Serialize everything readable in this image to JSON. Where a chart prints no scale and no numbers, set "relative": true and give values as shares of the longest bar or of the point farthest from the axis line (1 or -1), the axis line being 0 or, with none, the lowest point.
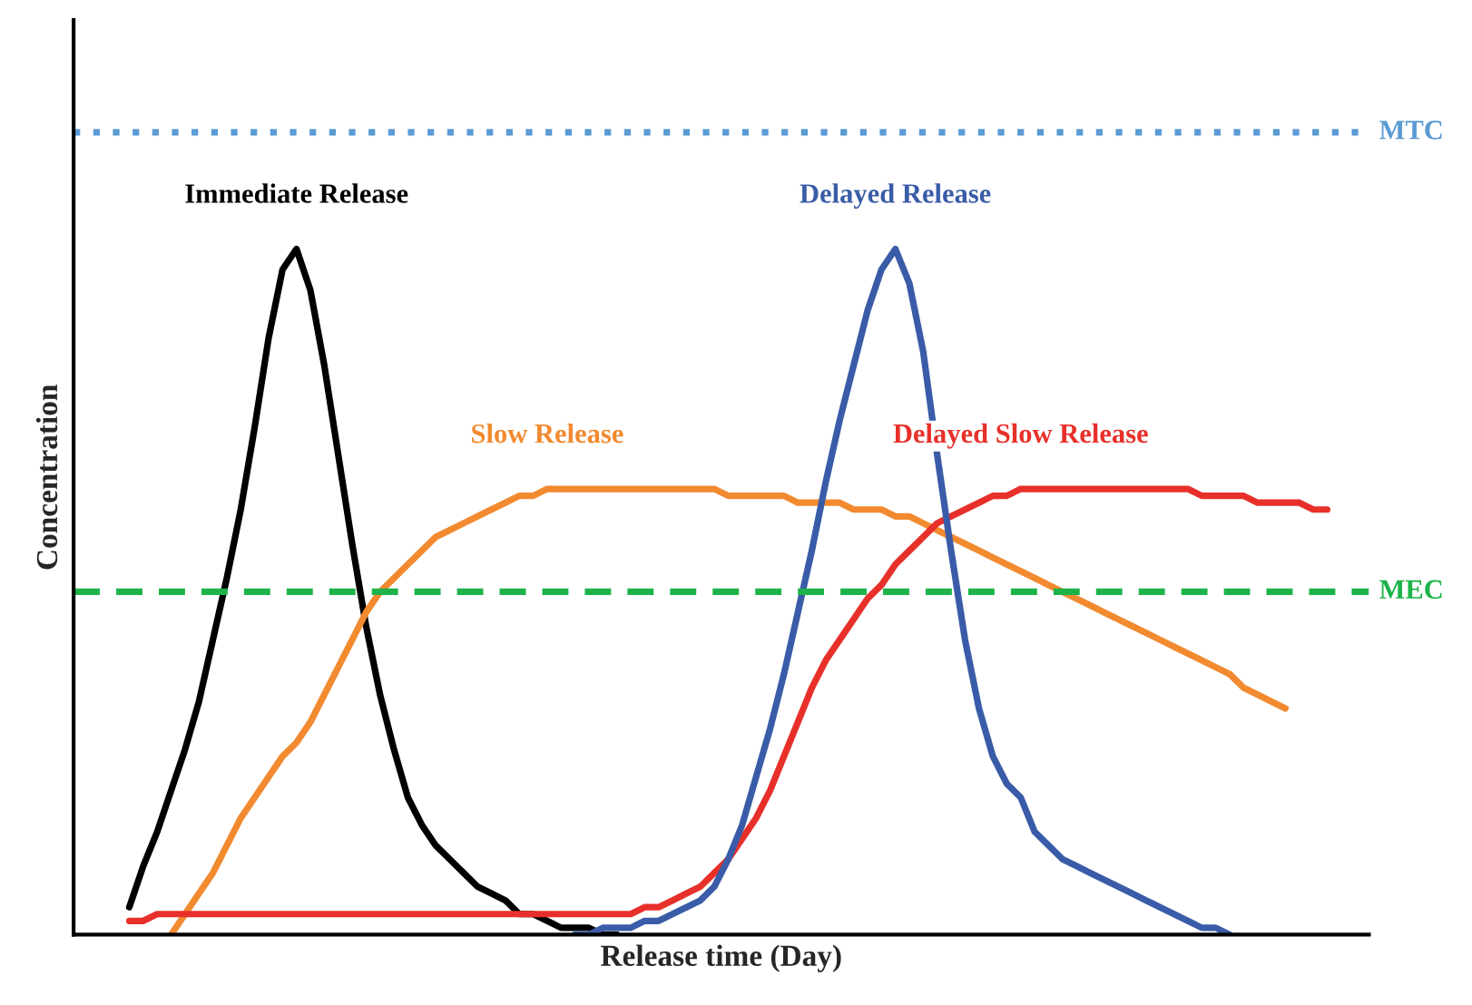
{
  "chart_data": {
    "type": "line",
    "relative": true,
    "xlabel": "Release time (Day)",
    "ylabel": "Concentration",
    "legend": false,
    "line_style": "solid",
    "marker": "none",
    "categories": [
      null,
      null,
      null,
      null,
      null,
      null,
      null,
      null,
      null,
      null,
      null,
      null,
      null,
      null,
      null,
      null,
      null,
      null,
      null,
      null,
      null,
      null,
      null,
      null,
      null,
      null,
      null,
      null,
      null,
      null,
      null,
      null,
      null,
      null,
      null,
      null,
      null,
      null,
      null,
      null,
      null,
      null,
      null,
      null,
      null,
      null,
      null,
      null,
      null,
      null,
      null,
      null,
      null,
      null,
      null,
      null,
      null,
      null,
      null,
      null,
      null,
      null,
      null,
      null,
      null,
      null,
      null,
      null,
      null,
      null,
      null,
      null,
      null,
      null,
      null,
      null,
      null,
      null,
      null,
      null,
      null,
      null,
      null,
      null,
      null,
      null,
      null,
      null
    ],
    "series": [
      {
        "name": "Immediate Release",
        "color": "#000000",
        "values": [
          null,
          0.04,
          0.1,
          0.15,
          0.21,
          0.27,
          0.34,
          0.43,
          0.52,
          0.62,
          0.74,
          0.87,
          0.97,
          1,
          0.94,
          0.83,
          0.7,
          0.57,
          0.45,
          0.35,
          0.27,
          0.2,
          0.16,
          0.13,
          0.11,
          0.09,
          0.07,
          0.06,
          0.05,
          0.03,
          0.03,
          0.02,
          0.01,
          0.01,
          0.01,
          0,
          0,
          null,
          null,
          null,
          null,
          null,
          null,
          null,
          null,
          null,
          null,
          null,
          null,
          null,
          null,
          null,
          null,
          null,
          null,
          null,
          null,
          null,
          null,
          null,
          null,
          null,
          null,
          null,
          null,
          null,
          null,
          null,
          null,
          null,
          null,
          null,
          null,
          null,
          null,
          null,
          null,
          null,
          null,
          null,
          null,
          null,
          null,
          null,
          null,
          null,
          null,
          null
        ]
      },
      {
        "name": "Slow Release",
        "color": "#f28a30",
        "values": [
          null,
          null,
          null,
          null,
          0,
          0.03,
          0.06,
          0.09,
          0.13,
          0.17,
          0.2,
          0.23,
          0.26,
          0.28,
          0.31,
          0.35,
          0.39,
          0.43,
          0.47,
          0.5,
          0.52,
          0.54,
          0.56,
          0.58,
          0.59,
          0.6,
          0.61,
          0.62,
          0.63,
          0.64,
          0.64,
          0.65,
          0.65,
          0.65,
          0.65,
          0.65,
          0.65,
          0.65,
          0.65,
          0.65,
          0.65,
          0.65,
          0.65,
          0.65,
          0.64,
          0.64,
          0.64,
          0.64,
          0.64,
          0.63,
          0.63,
          0.63,
          0.63,
          0.62,
          0.62,
          0.62,
          0.61,
          0.61,
          0.6,
          0.59,
          0.58,
          0.57,
          0.56,
          0.55,
          0.54,
          0.53,
          0.52,
          0.51,
          0.5,
          0.49,
          0.48,
          0.47,
          0.46,
          0.45,
          0.44,
          0.43,
          0.42,
          0.41,
          0.4,
          0.39,
          0.38,
          0.36,
          0.35,
          0.34,
          0.33,
          null,
          null,
          null
        ]
      },
      {
        "name": "Delayed Slow Release",
        "color": "#e8302a",
        "values": [
          null,
          0.02,
          0.02,
          0.03,
          0.03,
          0.03,
          0.03,
          0.03,
          0.03,
          0.03,
          0.03,
          0.03,
          0.03,
          0.03,
          0.03,
          0.03,
          0.03,
          0.03,
          0.03,
          0.03,
          0.03,
          0.03,
          0.03,
          0.03,
          0.03,
          0.03,
          0.03,
          0.03,
          0.03,
          0.03,
          0.03,
          0.03,
          0.03,
          0.03,
          0.03,
          0.03,
          0.03,
          0.03,
          0.04,
          0.04,
          0.05,
          0.06,
          0.07,
          0.09,
          0.11,
          0.14,
          0.17,
          0.21,
          0.26,
          0.31,
          0.36,
          0.4,
          0.43,
          0.46,
          0.49,
          0.51,
          0.54,
          0.56,
          0.58,
          0.6,
          0.61,
          0.62,
          0.63,
          0.64,
          0.64,
          0.65,
          0.65,
          0.65,
          0.65,
          0.65,
          0.65,
          0.65,
          0.65,
          0.65,
          0.65,
          0.65,
          0.65,
          0.65,
          0.64,
          0.64,
          0.64,
          0.64,
          0.63,
          0.63,
          0.63,
          0.63,
          0.62,
          0.62
        ]
      },
      {
        "name": "Delayed Release",
        "color": "#3a5ca8",
        "values": [
          null,
          null,
          null,
          null,
          null,
          null,
          null,
          null,
          null,
          null,
          null,
          null,
          null,
          null,
          null,
          null,
          null,
          null,
          null,
          null,
          null,
          null,
          null,
          null,
          null,
          null,
          null,
          null,
          null,
          null,
          null,
          null,
          null,
          0,
          0,
          0.01,
          0.01,
          0.01,
          0.02,
          0.02,
          0.03,
          0.04,
          0.05,
          0.07,
          0.11,
          0.16,
          0.23,
          0.3,
          0.38,
          0.47,
          0.56,
          0.66,
          0.75,
          0.83,
          0.91,
          0.97,
          1,
          0.95,
          0.85,
          0.7,
          0.56,
          0.43,
          0.33,
          0.26,
          0.22,
          0.2,
          0.15,
          0.13,
          0.11,
          0.1,
          0.09,
          0.08,
          0.07,
          0.06,
          0.05,
          0.04,
          0.03,
          0.02,
          0.01,
          0.01,
          0,
          null,
          null,
          null,
          null,
          null,
          null,
          null
        ]
      }
    ],
    "ref_lines": [
      {
        "axis": "y",
        "value": 1.17,
        "label": "MTC",
        "color": "#5b9bd5",
        "line_style": "dotted"
      },
      {
        "axis": "y",
        "value": 0.5,
        "label": "MEC",
        "color": "#1db34a",
        "line_style": "dashed"
      }
    ]
  }
}
